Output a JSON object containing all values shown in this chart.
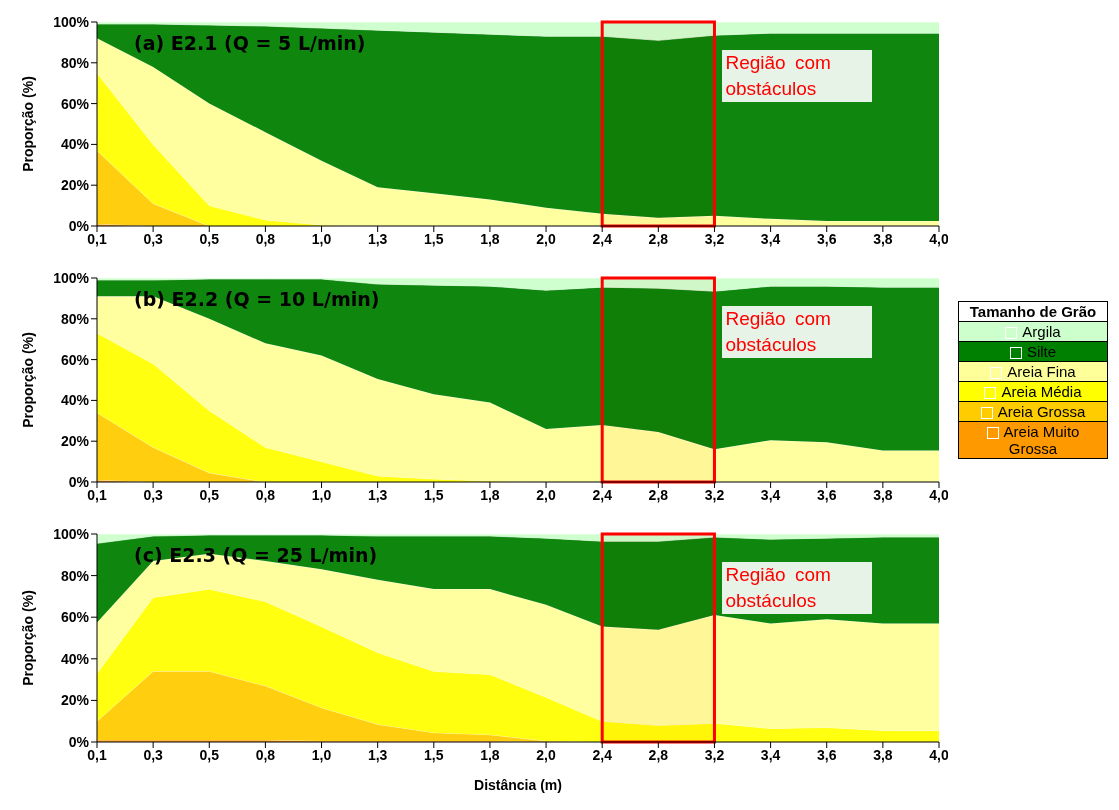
{
  "chart_data": [
    {
      "type": "area",
      "stacked": true,
      "title": "(a) E2.1 (Q = 5 L/min)",
      "ylabel": "Proporção (%)",
      "categories": [
        "0,1",
        "0,3",
        "0,5",
        "0,8",
        "1,0",
        "1,3",
        "1,5",
        "1,8",
        "2,0",
        "2,4",
        "2,8",
        "3,2",
        "3,4",
        "3,6",
        "3,8",
        "4,0"
      ],
      "ylim": [
        0,
        100
      ],
      "yticks": [
        {
          "value": 0,
          "label": "0%"
        },
        {
          "value": 20,
          "label": "20%"
        },
        {
          "value": 40,
          "label": "40%"
        },
        {
          "value": 60,
          "label": "60%"
        },
        {
          "value": 80,
          "label": "80%"
        },
        {
          "value": 100,
          "label": "100%"
        }
      ],
      "grid": false,
      "legend": false,
      "series": [
        {
          "color": "#ff9900",
          "values": [
            1,
            0,
            0,
            0,
            0,
            0,
            0,
            0,
            0,
            0,
            0,
            0,
            0,
            0,
            0,
            0
          ]
        },
        {
          "color": "#ffcc00",
          "values": [
            36,
            11,
            0,
            0,
            0,
            0,
            0,
            0,
            0,
            0,
            0,
            0,
            0,
            0,
            0,
            0
          ]
        },
        {
          "color": "#ffff00",
          "values": [
            38,
            29,
            10,
            3,
            0.5,
            0,
            0,
            0,
            0,
            0,
            0,
            0,
            0,
            0,
            0,
            0
          ]
        },
        {
          "color": "#ffff99",
          "values": [
            17,
            38,
            50,
            43,
            31.5,
            19,
            16,
            13,
            9,
            6,
            4,
            5,
            3.5,
            2.5,
            2.5,
            2.5
          ]
        },
        {
          "color": "#008000",
          "values": [
            7,
            21,
            38.5,
            52,
            65,
            77,
            79,
            81,
            84,
            87,
            87,
            88.5,
            91,
            92,
            92,
            92
          ]
        },
        {
          "color": "#ccffcc",
          "values": [
            1,
            1,
            1.5,
            2,
            3,
            4,
            5,
            6,
            7,
            7,
            9,
            6.5,
            5.5,
            5.5,
            5.5,
            5.5
          ]
        }
      ],
      "bands": [
        {
          "axis": "x",
          "from": "2,4",
          "to": "3,2",
          "label": "Região com obstáculos",
          "color": "#ff0000"
        }
      ]
    },
    {
      "type": "area",
      "stacked": true,
      "title": "(b) E2.2 (Q = 10 L/min)",
      "ylabel": "Proporção (%)",
      "legend_title": "Tamanho de Grão",
      "categories": [
        "0,1",
        "0,3",
        "0,5",
        "0,8",
        "1,0",
        "1,3",
        "1,5",
        "1,8",
        "2,0",
        "2,4",
        "2,8",
        "3,2",
        "3,4",
        "3,6",
        "3,8",
        "4,0"
      ],
      "ylim": [
        0,
        100
      ],
      "yticks": [
        {
          "value": 0,
          "label": "0%"
        },
        {
          "value": 20,
          "label": "20%"
        },
        {
          "value": 40,
          "label": "40%"
        },
        {
          "value": 60,
          "label": "60%"
        },
        {
          "value": 80,
          "label": "80%"
        },
        {
          "value": 100,
          "label": "100%"
        }
      ],
      "grid": false,
      "legend": "right",
      "series": [
        {
          "name": "Areia Muito Grossa",
          "color": "#ff9900",
          "values": [
            1,
            0,
            0,
            0,
            0,
            0,
            0,
            0,
            0,
            0,
            0,
            0,
            0,
            0,
            0,
            0
          ]
        },
        {
          "name": "Areia Grossa",
          "color": "#ffcc00",
          "values": [
            33,
            17,
            4.5,
            0,
            0,
            0,
            0,
            0,
            0,
            0,
            0,
            0,
            0,
            0,
            0,
            0
          ]
        },
        {
          "name": "Areia Média",
          "color": "#ffff00",
          "values": [
            39,
            41,
            30.5,
            17,
            10,
            3,
            1.5,
            0.5,
            0,
            0,
            0,
            0,
            0,
            0,
            0,
            0
          ]
        },
        {
          "name": "Areia Fina",
          "color": "#ffff99",
          "values": [
            18,
            33,
            45,
            51,
            52,
            47.5,
            41.5,
            38.5,
            26,
            28,
            24.5,
            16,
            20.5,
            19.5,
            15.5,
            15.5
          ]
        },
        {
          "name": "Silte",
          "color": "#008000",
          "values": [
            8,
            8,
            19.5,
            31.5,
            37.5,
            46.5,
            53.5,
            57,
            68,
            67.5,
            70.5,
            77.5,
            75.5,
            76.5,
            80,
            80
          ]
        },
        {
          "name": "Argila",
          "color": "#ccffcc",
          "values": [
            1,
            1,
            0.5,
            0.5,
            0.5,
            3,
            3.5,
            4,
            6,
            4.5,
            5,
            6.5,
            4,
            4,
            4.5,
            4.5
          ]
        }
      ],
      "bands": [
        {
          "axis": "x",
          "from": "2,4",
          "to": "3,2",
          "label": "Região com obstáculos",
          "color": "#ff0000"
        }
      ]
    },
    {
      "type": "area",
      "stacked": true,
      "title": "(c) E2.3 (Q = 25 L/min)",
      "ylabel": "Proporção (%)",
      "xlabel": "Distância (m)",
      "categories": [
        "0,1",
        "0,3",
        "0,5",
        "0,8",
        "1,0",
        "1,3",
        "1,5",
        "1,8",
        "2,0",
        "2,4",
        "2,8",
        "3,2",
        "3,4",
        "3,6",
        "3,8",
        "4,0"
      ],
      "ylim": [
        0,
        100
      ],
      "yticks": [
        {
          "value": 0,
          "label": "0%"
        },
        {
          "value": 20,
          "label": "20%"
        },
        {
          "value": 40,
          "label": "40%"
        },
        {
          "value": 60,
          "label": "60%"
        },
        {
          "value": 80,
          "label": "80%"
        },
        {
          "value": 100,
          "label": "100%"
        }
      ],
      "grid": false,
      "legend": false,
      "series": [
        {
          "color": "#ff9900",
          "values": [
            1,
            1,
            1,
            1,
            0.5,
            0.5,
            0.5,
            0.5,
            0,
            0,
            0,
            0,
            0,
            0,
            0,
            0
          ]
        },
        {
          "color": "#ffcc00",
          "values": [
            9,
            33,
            33,
            26,
            16,
            8,
            4,
            3,
            0.5,
            0,
            0,
            0,
            0,
            0,
            0,
            0
          ]
        },
        {
          "color": "#ffff00",
          "values": [
            23,
            35.5,
            39.5,
            40.5,
            39,
            34.5,
            29.5,
            29,
            21,
            10,
            8,
            9,
            6.5,
            7,
            5.5,
            5.5
          ]
        },
        {
          "color": "#ffff99",
          "values": [
            24.5,
            17.5,
            17,
            19.5,
            27.5,
            35,
            39.5,
            41,
            44.5,
            45.5,
            46,
            52,
            50.5,
            52,
            51.5,
            51.5
          ]
        },
        {
          "color": "#008000",
          "values": [
            38,
            12,
            9,
            12.5,
            16.5,
            21,
            25.5,
            25.5,
            32,
            41,
            42.5,
            37.5,
            40.5,
            39,
            41.5,
            41.5
          ]
        },
        {
          "color": "#ccffcc",
          "values": [
            4.5,
            1,
            0.5,
            0.5,
            0.5,
            1,
            1,
            1,
            2,
            3.5,
            3.5,
            1.5,
            2.5,
            2,
            1.5,
            1.5
          ]
        }
      ],
      "bands": [
        {
          "axis": "x",
          "from": "2,4",
          "to": "3,2",
          "label": "Região com obstáculos",
          "color": "#ff0000"
        }
      ]
    }
  ]
}
